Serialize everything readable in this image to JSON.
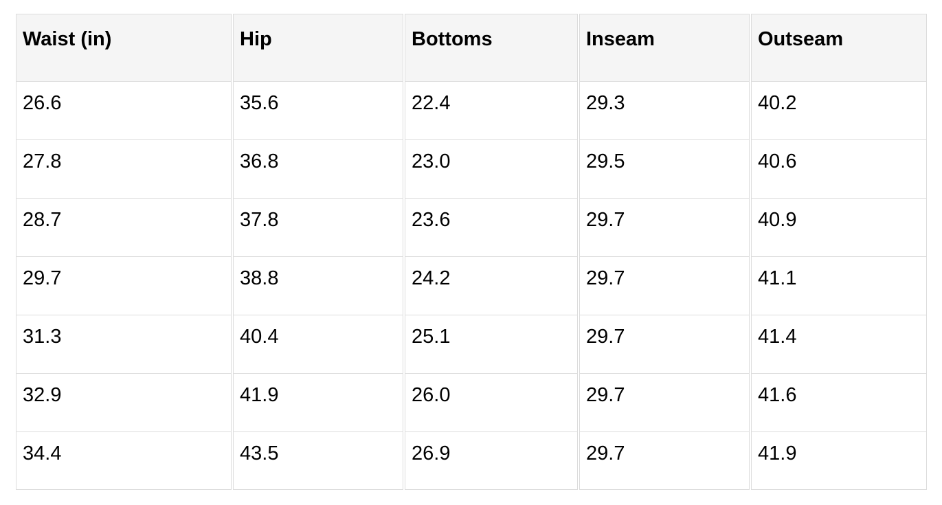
{
  "size_table": {
    "header_bg": "#f5f5f5",
    "border_color": "#dcdcdc",
    "text_color": "#000000",
    "columns": [
      "Waist (in)",
      "Hip",
      "Bottoms",
      "Inseam",
      "Outseam"
    ],
    "rows": [
      [
        "26.6",
        "35.6",
        "22.4",
        "29.3",
        "40.2"
      ],
      [
        "27.8",
        "36.8",
        "23.0",
        "29.5",
        "40.6"
      ],
      [
        "28.7",
        "37.8",
        "23.6",
        "29.7",
        "40.9"
      ],
      [
        "29.7",
        "38.8",
        "24.2",
        "29.7",
        "41.1"
      ],
      [
        "31.3",
        "40.4",
        "25.1",
        "29.7",
        "41.4"
      ],
      [
        "32.9",
        "41.9",
        "26.0",
        "29.7",
        "41.6"
      ],
      [
        "34.4",
        "43.5",
        "26.9",
        "29.7",
        "41.9"
      ]
    ]
  },
  "chart_data": {
    "type": "table",
    "title": "",
    "columns": [
      "Waist (in)",
      "Hip",
      "Bottoms",
      "Inseam",
      "Outseam"
    ],
    "rows": [
      [
        26.6,
        35.6,
        22.4,
        29.3,
        40.2
      ],
      [
        27.8,
        36.8,
        23.0,
        29.5,
        40.6
      ],
      [
        28.7,
        37.8,
        23.6,
        29.7,
        40.9
      ],
      [
        29.7,
        38.8,
        24.2,
        29.7,
        41.1
      ],
      [
        31.3,
        40.4,
        25.1,
        29.7,
        41.4
      ],
      [
        32.9,
        41.9,
        26.0,
        29.7,
        41.6
      ],
      [
        34.4,
        43.5,
        26.9,
        29.7,
        41.9
      ]
    ],
    "units": "inches",
    "layout": {
      "header_background": "#f5f5f5",
      "grid": true
    }
  }
}
